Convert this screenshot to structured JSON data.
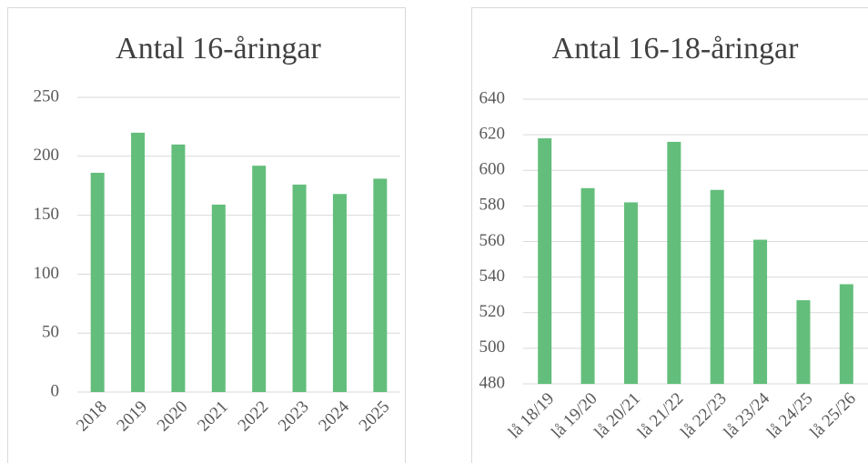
{
  "chart_data": [
    {
      "type": "bar",
      "title": "Antal 16-åringar",
      "categories": [
        "2018",
        "2019",
        "2020",
        "2021",
        "2022",
        "2023",
        "2024",
        "2025"
      ],
      "values": [
        186,
        220,
        210,
        159,
        192,
        176,
        168,
        181
      ],
      "color": "#63be7b",
      "ylim": [
        0,
        250
      ],
      "yticks": [
        0,
        50,
        100,
        150,
        200,
        250
      ],
      "grid": true
    },
    {
      "type": "bar",
      "title": "Antal 16-18-åringar",
      "categories": [
        "lå 18/19",
        "lå 19/20",
        "lå 20/21",
        "lå 21/22",
        "lå 22/23",
        "lå 23/24",
        "lå 24/25",
        "lå 25/26"
      ],
      "values": [
        618,
        590,
        582,
        616,
        589,
        561,
        527,
        536
      ],
      "color": "#63be7b",
      "ylim": [
        480,
        640
      ],
      "yticks": [
        480,
        500,
        520,
        540,
        560,
        580,
        600,
        620,
        640
      ],
      "grid": true
    }
  ]
}
